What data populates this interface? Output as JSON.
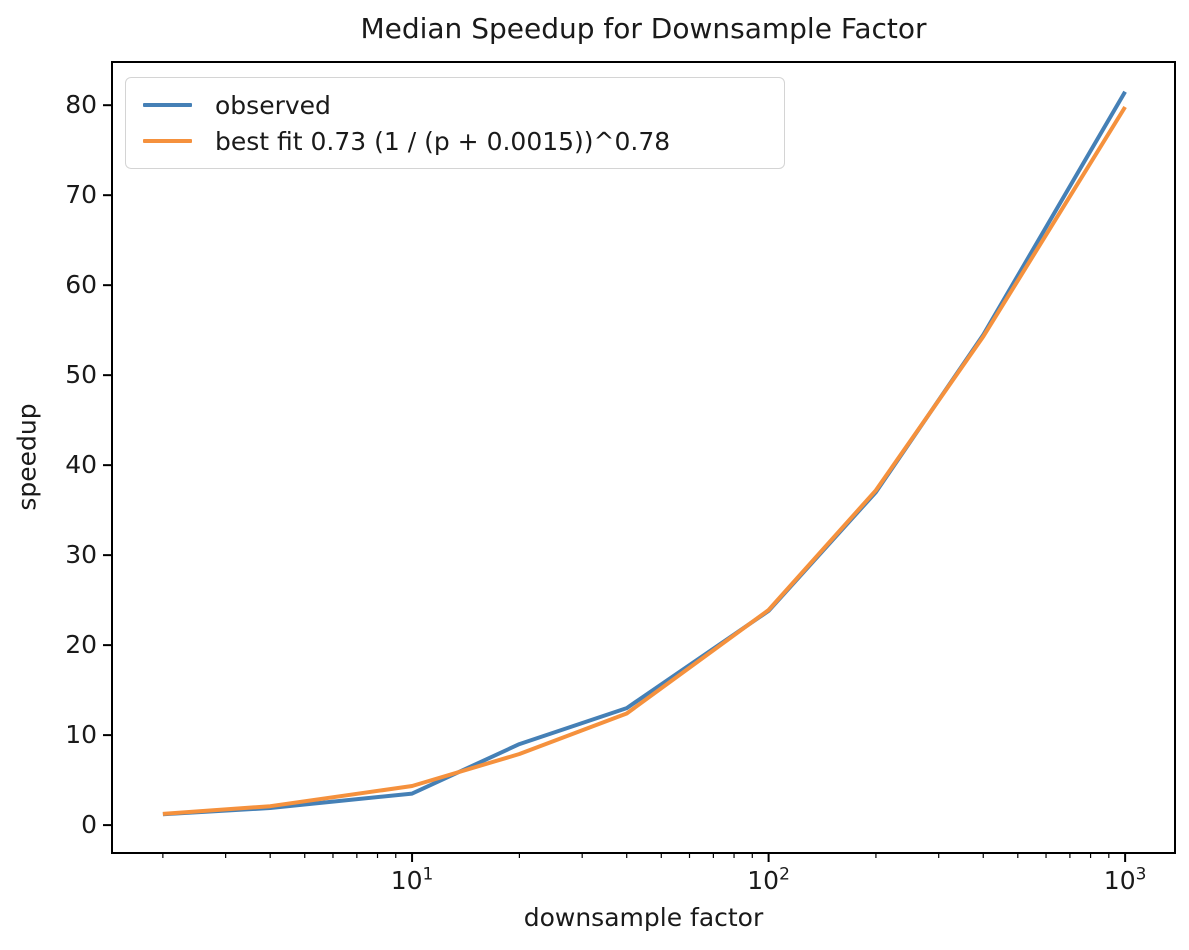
{
  "chart_data": {
    "type": "line",
    "title": "Median Speedup for Downsample Factor",
    "xlabel": "downsample factor",
    "ylabel": "speedup",
    "x_scale": "log",
    "grid": false,
    "legend_position": "upper left",
    "x": [
      2,
      4,
      10,
      20,
      40,
      100,
      200,
      400,
      1000
    ],
    "series": [
      {
        "name": "observed",
        "color": "#4580b6",
        "values": [
          1.2,
          1.9,
          3.5,
          9.0,
          13.0,
          23.8,
          37.0,
          54.5,
          81.5
        ]
      },
      {
        "name": "best fit 0.73 (1 / (p + 0.0015))^0.78",
        "color": "#f5913d",
        "values": [
          1.25,
          2.1,
          4.35,
          7.9,
          12.4,
          23.9,
          37.2,
          54.3,
          79.8
        ]
      }
    ],
    "xlim": [
      1.44,
      1380
    ],
    "ylim": [
      -3.1,
      84.8
    ],
    "x_major_ticks": [
      {
        "value": 10,
        "label_base": "10",
        "label_exp": "1"
      },
      {
        "value": 100,
        "label_base": "10",
        "label_exp": "2"
      },
      {
        "value": 1000,
        "label_base": "10",
        "label_exp": "3"
      }
    ],
    "x_minor_ticks": [
      2,
      3,
      4,
      5,
      6,
      7,
      8,
      9,
      20,
      30,
      40,
      50,
      60,
      70,
      80,
      90,
      200,
      300,
      400,
      500,
      600,
      700,
      800,
      900
    ],
    "y_ticks": [
      0,
      10,
      20,
      30,
      40,
      50,
      60,
      70,
      80
    ],
    "axis_color": "#000000",
    "text_color": "#1a1a1a"
  }
}
